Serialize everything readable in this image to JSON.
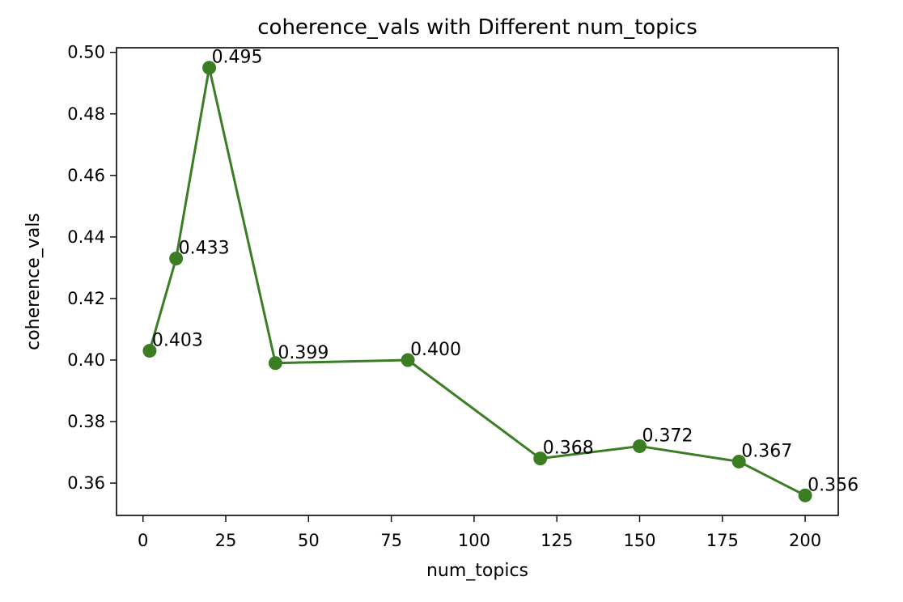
{
  "chart_data": {
    "type": "line",
    "title": "coherence_vals with Different num_topics",
    "xlabel": "num_topics",
    "ylabel": "coherence_vals",
    "xlim": [
      -8,
      210
    ],
    "ylim": [
      0.3495,
      0.5015
    ],
    "xticks": [
      0,
      25,
      50,
      75,
      100,
      125,
      150,
      175,
      200
    ],
    "yticks": [
      0.36,
      0.38,
      0.4,
      0.42,
      0.44,
      0.46,
      0.48,
      0.5
    ],
    "grid": false,
    "series": [
      {
        "color": "#3a7d22",
        "marker": "circle",
        "x": [
          2,
          10,
          20,
          40,
          80,
          120,
          150,
          180,
          200
        ],
        "y": [
          0.403,
          0.433,
          0.495,
          0.399,
          0.4,
          0.368,
          0.372,
          0.367,
          0.356
        ],
        "labels": [
          "0.403",
          "0.433",
          "0.495",
          "0.399",
          "0.400",
          "0.368",
          "0.372",
          "0.367",
          "0.356"
        ]
      }
    ]
  }
}
